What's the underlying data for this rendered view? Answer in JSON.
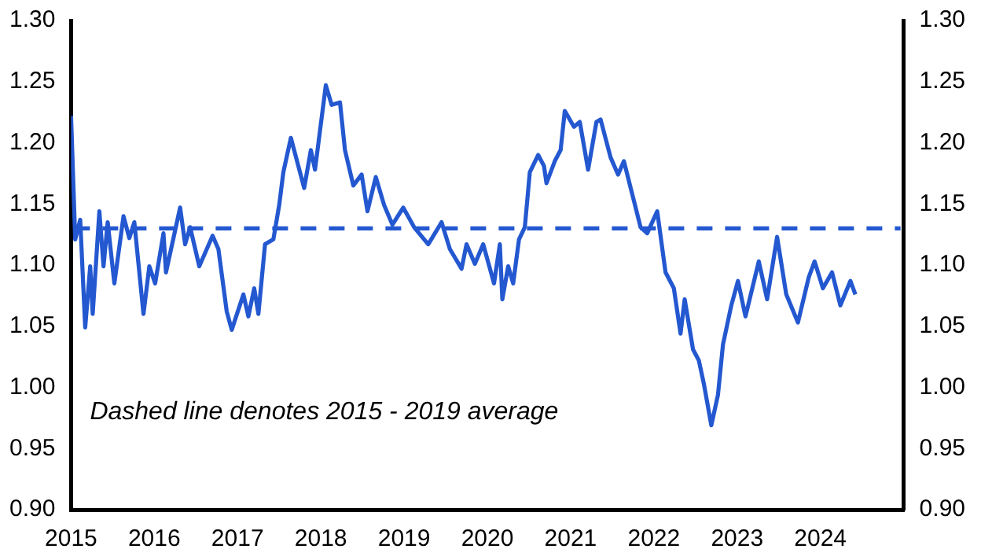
{
  "chart_data": {
    "type": "line",
    "x": [
      2015.0,
      2015.05,
      2015.11,
      2015.17,
      2015.23,
      2015.26,
      2015.34,
      2015.39,
      2015.44,
      2015.52,
      2015.63,
      2015.7,
      2015.76,
      2015.87,
      2015.94,
      2016.01,
      2016.11,
      2016.14,
      2016.31,
      2016.37,
      2016.43,
      2016.54,
      2016.7,
      2016.77,
      2016.87,
      2016.93,
      2017.07,
      2017.13,
      2017.2,
      2017.25,
      2017.33,
      2017.43,
      2017.5,
      2017.55,
      2017.64,
      2017.73,
      2017.8,
      2017.88,
      2017.93,
      2018.06,
      2018.13,
      2018.23,
      2018.29,
      2018.39,
      2018.49,
      2018.56,
      2018.66,
      2018.76,
      2018.86,
      2018.99,
      2019.12,
      2019.29,
      2019.45,
      2019.55,
      2019.69,
      2019.75,
      2019.85,
      2019.95,
      2020.08,
      2020.15,
      2020.18,
      2020.25,
      2020.31,
      2020.38,
      2020.45,
      2020.51,
      2020.61,
      2020.68,
      2020.71,
      2020.81,
      2020.88,
      2020.93,
      2021.04,
      2021.11,
      2021.21,
      2021.31,
      2021.36,
      2021.48,
      2021.57,
      2021.64,
      2021.74,
      2021.84,
      2021.92,
      2022.04,
      2022.14,
      2022.24,
      2022.32,
      2022.37,
      2022.47,
      2022.54,
      2022.6,
      2022.69,
      2022.77,
      2022.83,
      2022.93,
      2023.01,
      2023.1,
      2023.26,
      2023.36,
      2023.48,
      2023.59,
      2023.73,
      2023.86,
      2023.93,
      2024.03,
      2024.14,
      2024.24,
      2024.36,
      2024.42
    ],
    "series": [
      {
        "color": "#2458d0",
        "values": [
          1.222,
          1.121,
          1.137,
          1.049,
          1.099,
          1.06,
          1.144,
          1.099,
          1.135,
          1.085,
          1.14,
          1.122,
          1.135,
          1.06,
          1.099,
          1.085,
          1.126,
          1.094,
          1.147,
          1.117,
          1.131,
          1.099,
          1.124,
          1.113,
          1.062,
          1.047,
          1.076,
          1.058,
          1.081,
          1.06,
          1.117,
          1.121,
          1.149,
          1.176,
          1.204,
          1.181,
          1.163,
          1.194,
          1.178,
          1.247,
          1.231,
          1.233,
          1.194,
          1.165,
          1.174,
          1.144,
          1.172,
          1.149,
          1.133,
          1.147,
          1.131,
          1.117,
          1.135,
          1.113,
          1.097,
          1.117,
          1.101,
          1.117,
          1.085,
          1.117,
          1.072,
          1.099,
          1.085,
          1.121,
          1.131,
          1.176,
          1.19,
          1.181,
          1.167,
          1.185,
          1.194,
          1.226,
          1.213,
          1.217,
          1.178,
          1.217,
          1.219,
          1.188,
          1.174,
          1.185,
          1.158,
          1.131,
          1.126,
          1.144,
          1.094,
          1.081,
          1.044,
          1.072,
          1.031,
          1.022,
          1.003,
          0.969,
          0.994,
          1.035,
          1.067,
          1.087,
          1.058,
          1.103,
          1.072,
          1.123,
          1.076,
          1.053,
          1.09,
          1.103,
          1.081,
          1.094,
          1.067,
          1.087,
          1.076
        ]
      }
    ],
    "xlim": [
      2015,
      2025
    ],
    "xticks": [
      2015,
      2016,
      2017,
      2018,
      2019,
      2020,
      2021,
      2022,
      2023,
      2024
    ],
    "ylim": [
      0.9,
      1.3
    ],
    "yticks": [
      {
        "value": 0.9,
        "label": "0.90"
      },
      0.95,
      {
        "value": 1.0,
        "label": "1.00"
      },
      1.05,
      {
        "value": 1.1,
        "label": "1.10"
      },
      1.15,
      {
        "value": 1.2,
        "label": "1.20"
      },
      1.25,
      {
        "value": 1.3,
        "label": "1.30"
      }
    ],
    "y2lim": [
      0.9,
      1.3
    ],
    "y2ticks": [
      {
        "value": 0.9,
        "label": "0.90"
      },
      0.95,
      {
        "value": 1.0,
        "label": "1.00"
      },
      1.05,
      {
        "value": 1.1,
        "label": "1.10"
      },
      1.15,
      {
        "value": 1.2,
        "label": "1.20"
      },
      1.25,
      {
        "value": 1.3,
        "label": "1.30"
      }
    ],
    "ref_lines": [
      {
        "axis": "y",
        "value": 1.13,
        "color": "#2458d0",
        "line_style": "dashed"
      }
    ],
    "annotations": [
      "Dashed line denotes 2015 - 2019 average"
    ],
    "grid": false,
    "legend": false,
    "marker": "none",
    "line_style": "solid"
  }
}
